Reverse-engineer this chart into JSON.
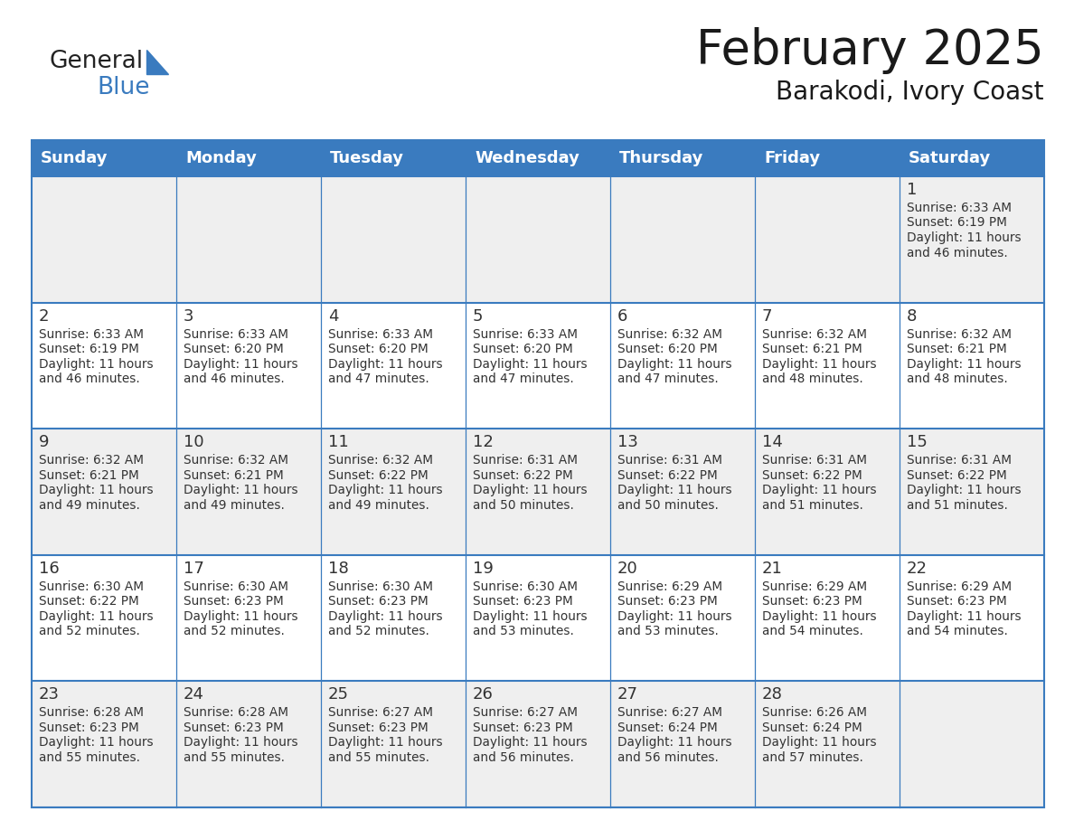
{
  "title": "February 2025",
  "subtitle": "Barakodi, Ivory Coast",
  "days_of_week": [
    "Sunday",
    "Monday",
    "Tuesday",
    "Wednesday",
    "Thursday",
    "Friday",
    "Saturday"
  ],
  "header_bg": "#3A7BBF",
  "header_text": "#FFFFFF",
  "cell_bg_odd": "#EFEFEF",
  "cell_bg_even": "#FFFFFF",
  "border_color": "#3A7BBF",
  "title_color": "#1a1a1a",
  "subtitle_color": "#1a1a1a",
  "day_number_color": "#333333",
  "cell_text_color": "#333333",
  "calendar_data": [
    [
      null,
      null,
      null,
      null,
      null,
      null,
      {
        "day": 1,
        "sunrise": "6:33 AM",
        "sunset": "6:19 PM",
        "dl1": "Daylight: 11 hours",
        "dl2": "and 46 minutes."
      }
    ],
    [
      {
        "day": 2,
        "sunrise": "6:33 AM",
        "sunset": "6:19 PM",
        "dl1": "Daylight: 11 hours",
        "dl2": "and 46 minutes."
      },
      {
        "day": 3,
        "sunrise": "6:33 AM",
        "sunset": "6:20 PM",
        "dl1": "Daylight: 11 hours",
        "dl2": "and 46 minutes."
      },
      {
        "day": 4,
        "sunrise": "6:33 AM",
        "sunset": "6:20 PM",
        "dl1": "Daylight: 11 hours",
        "dl2": "and 47 minutes."
      },
      {
        "day": 5,
        "sunrise": "6:33 AM",
        "sunset": "6:20 PM",
        "dl1": "Daylight: 11 hours",
        "dl2": "and 47 minutes."
      },
      {
        "day": 6,
        "sunrise": "6:32 AM",
        "sunset": "6:20 PM",
        "dl1": "Daylight: 11 hours",
        "dl2": "and 47 minutes."
      },
      {
        "day": 7,
        "sunrise": "6:32 AM",
        "sunset": "6:21 PM",
        "dl1": "Daylight: 11 hours",
        "dl2": "and 48 minutes."
      },
      {
        "day": 8,
        "sunrise": "6:32 AM",
        "sunset": "6:21 PM",
        "dl1": "Daylight: 11 hours",
        "dl2": "and 48 minutes."
      }
    ],
    [
      {
        "day": 9,
        "sunrise": "6:32 AM",
        "sunset": "6:21 PM",
        "dl1": "Daylight: 11 hours",
        "dl2": "and 49 minutes."
      },
      {
        "day": 10,
        "sunrise": "6:32 AM",
        "sunset": "6:21 PM",
        "dl1": "Daylight: 11 hours",
        "dl2": "and 49 minutes."
      },
      {
        "day": 11,
        "sunrise": "6:32 AM",
        "sunset": "6:22 PM",
        "dl1": "Daylight: 11 hours",
        "dl2": "and 49 minutes."
      },
      {
        "day": 12,
        "sunrise": "6:31 AM",
        "sunset": "6:22 PM",
        "dl1": "Daylight: 11 hours",
        "dl2": "and 50 minutes."
      },
      {
        "day": 13,
        "sunrise": "6:31 AM",
        "sunset": "6:22 PM",
        "dl1": "Daylight: 11 hours",
        "dl2": "and 50 minutes."
      },
      {
        "day": 14,
        "sunrise": "6:31 AM",
        "sunset": "6:22 PM",
        "dl1": "Daylight: 11 hours",
        "dl2": "and 51 minutes."
      },
      {
        "day": 15,
        "sunrise": "6:31 AM",
        "sunset": "6:22 PM",
        "dl1": "Daylight: 11 hours",
        "dl2": "and 51 minutes."
      }
    ],
    [
      {
        "day": 16,
        "sunrise": "6:30 AM",
        "sunset": "6:22 PM",
        "dl1": "Daylight: 11 hours",
        "dl2": "and 52 minutes."
      },
      {
        "day": 17,
        "sunrise": "6:30 AM",
        "sunset": "6:23 PM",
        "dl1": "Daylight: 11 hours",
        "dl2": "and 52 minutes."
      },
      {
        "day": 18,
        "sunrise": "6:30 AM",
        "sunset": "6:23 PM",
        "dl1": "Daylight: 11 hours",
        "dl2": "and 52 minutes."
      },
      {
        "day": 19,
        "sunrise": "6:30 AM",
        "sunset": "6:23 PM",
        "dl1": "Daylight: 11 hours",
        "dl2": "and 53 minutes."
      },
      {
        "day": 20,
        "sunrise": "6:29 AM",
        "sunset": "6:23 PM",
        "dl1": "Daylight: 11 hours",
        "dl2": "and 53 minutes."
      },
      {
        "day": 21,
        "sunrise": "6:29 AM",
        "sunset": "6:23 PM",
        "dl1": "Daylight: 11 hours",
        "dl2": "and 54 minutes."
      },
      {
        "day": 22,
        "sunrise": "6:29 AM",
        "sunset": "6:23 PM",
        "dl1": "Daylight: 11 hours",
        "dl2": "and 54 minutes."
      }
    ],
    [
      {
        "day": 23,
        "sunrise": "6:28 AM",
        "sunset": "6:23 PM",
        "dl1": "Daylight: 11 hours",
        "dl2": "and 55 minutes."
      },
      {
        "day": 24,
        "sunrise": "6:28 AM",
        "sunset": "6:23 PM",
        "dl1": "Daylight: 11 hours",
        "dl2": "and 55 minutes."
      },
      {
        "day": 25,
        "sunrise": "6:27 AM",
        "sunset": "6:23 PM",
        "dl1": "Daylight: 11 hours",
        "dl2": "and 55 minutes."
      },
      {
        "day": 26,
        "sunrise": "6:27 AM",
        "sunset": "6:23 PM",
        "dl1": "Daylight: 11 hours",
        "dl2": "and 56 minutes."
      },
      {
        "day": 27,
        "sunrise": "6:27 AM",
        "sunset": "6:24 PM",
        "dl1": "Daylight: 11 hours",
        "dl2": "and 56 minutes."
      },
      {
        "day": 28,
        "sunrise": "6:26 AM",
        "sunset": "6:24 PM",
        "dl1": "Daylight: 11 hours",
        "dl2": "and 57 minutes."
      },
      null
    ]
  ]
}
